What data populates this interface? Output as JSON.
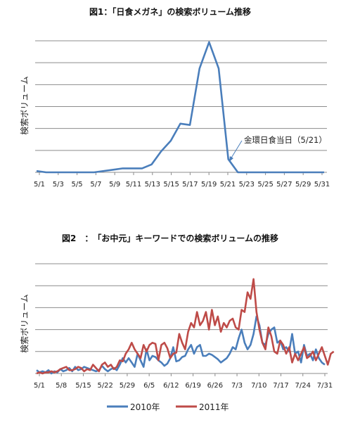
{
  "colors": {
    "s2010": "#4a7ebb",
    "s2011": "#be4b48",
    "grid": "#8c8c8c"
  },
  "chart_data": [
    {
      "type": "line",
      "title": "図1：「日食メガネ」の検索ボリューム推移",
      "ylabel": "検索ボリューム",
      "xlabel": "",
      "y_ticks_shown": false,
      "grid": true,
      "legend": "none",
      "x_tick_labels": [
        "5/1",
        "5/3",
        "5/5",
        "5/7",
        "5/9",
        "5/11",
        "5/13",
        "5/15",
        "5/17",
        "5/19",
        "5/21",
        "5/23",
        "5/25",
        "5/27",
        "5/29",
        "5/31"
      ],
      "ylim": [
        0,
        100
      ],
      "x": [
        "5/1",
        "5/2",
        "5/3",
        "5/4",
        "5/5",
        "5/6",
        "5/7",
        "5/8",
        "5/9",
        "5/10",
        "5/11",
        "5/12",
        "5/13",
        "5/14",
        "5/15",
        "5/16",
        "5/17",
        "5/18",
        "5/19",
        "5/20",
        "5/21",
        "5/22",
        "5/23",
        "5/24",
        "5/25",
        "5/26",
        "5/27",
        "5/28",
        "5/29",
        "5/30",
        "5/31"
      ],
      "series": [
        {
          "name": "",
          "values": [
            1,
            0,
            0,
            0,
            0,
            0,
            0,
            1,
            2,
            3,
            3,
            3,
            6,
            16,
            24,
            37,
            36,
            79,
            99,
            79,
            10,
            0,
            0,
            0,
            0,
            0,
            0,
            0,
            0,
            0,
            0
          ]
        }
      ],
      "annotation": {
        "text": "金環日食当日（5/21）",
        "x": "5/21"
      }
    },
    {
      "type": "line",
      "title": "図2　：　「お中元」キーワードでの検索ボリュームの推移",
      "ylabel": "検索ボリューム",
      "xlabel": "",
      "y_ticks_shown": false,
      "grid": true,
      "legend": "bottom",
      "x_tick_labels": [
        "5/1",
        "5/8",
        "5/15",
        "5/22",
        "5/29",
        "6/5",
        "6/12",
        "6/19",
        "6/26",
        "7/3",
        "7/10",
        "7/17",
        "7/24",
        "7/31"
      ],
      "ylim": [
        0,
        100
      ],
      "series": [
        {
          "name": "2010年",
          "values": [
            3,
            1,
            2,
            1,
            3,
            0,
            2,
            1,
            4,
            2,
            3,
            5,
            2,
            6,
            3,
            4,
            6,
            5,
            4,
            3,
            2,
            3,
            7,
            4,
            2,
            4,
            5,
            3,
            8,
            14,
            10,
            14,
            10,
            6,
            18,
            12,
            6,
            22,
            12,
            16,
            15,
            12,
            10,
            7,
            9,
            14,
            24,
            11,
            12,
            15,
            16,
            22,
            26,
            18,
            24,
            26,
            16,
            16,
            18,
            17,
            15,
            13,
            10,
            12,
            14,
            18,
            24,
            22,
            32,
            40,
            28,
            22,
            26,
            36,
            52,
            44,
            28,
            26,
            36,
            40,
            42,
            28,
            30,
            22,
            24,
            20,
            36,
            18,
            20,
            10,
            26,
            16,
            18,
            12,
            22,
            14,
            10,
            8
          ]
        },
        {
          "name": "2011年",
          "values": [
            0,
            1,
            0,
            1,
            1,
            2,
            1,
            2,
            4,
            5,
            6,
            3,
            3,
            4,
            6,
            5,
            2,
            4,
            3,
            8,
            5,
            2,
            8,
            10,
            6,
            8,
            4,
            6,
            12,
            11,
            18,
            22,
            28,
            22,
            18,
            14,
            26,
            20,
            26,
            28,
            27,
            12,
            26,
            28,
            23,
            14,
            18,
            19,
            36,
            28,
            22,
            38,
            46,
            42,
            56,
            44,
            48,
            56,
            40,
            58,
            44,
            52,
            38,
            46,
            42,
            48,
            50,
            42,
            40,
            58,
            56,
            74,
            68,
            86,
            56,
            40,
            28,
            22,
            42,
            34,
            20,
            18,
            30,
            26,
            18,
            24,
            10,
            18,
            12,
            18,
            24,
            14,
            16,
            20,
            12,
            18,
            24,
            16,
            8,
            18,
            20
          ]
        }
      ]
    }
  ]
}
